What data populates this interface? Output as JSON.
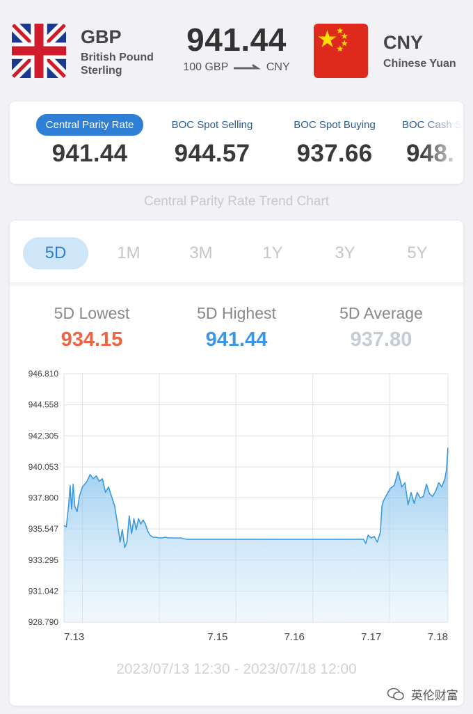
{
  "header": {
    "base_code": "GBP",
    "base_name_line1": "British Pound",
    "base_name_line2": "Sterling",
    "rate": "941.44",
    "conv_from": "100 GBP",
    "conv_to": "CNY",
    "quote_code": "CNY",
    "quote_name": "Chinese Yuan",
    "base_flag_icon": "uk-flag-icon",
    "quote_flag_icon": "china-flag-icon"
  },
  "rate_types": [
    {
      "label": "Central Parity Rate",
      "value": "941.44",
      "active": true
    },
    {
      "label": "BOC Spot Selling",
      "value": "944.57",
      "active": false
    },
    {
      "label": "BOC Spot Buying",
      "value": "937.66",
      "active": false
    },
    {
      "label": "BOC Cash S",
      "value": "948.",
      "active": false
    }
  ],
  "trend_title": "Central Parity Rate Trend Chart",
  "tabs": [
    "5D",
    "1M",
    "3M",
    "1Y",
    "3Y",
    "5Y"
  ],
  "active_tab": "5D",
  "stats": {
    "lowest_label": "5D Lowest",
    "lowest_value": "934.15",
    "highest_label": "5D Highest",
    "highest_value": "941.44",
    "average_label": "5D Average",
    "average_value": "937.80"
  },
  "colors": {
    "accent": "#2f7fd6",
    "lowest": "#ee6443",
    "highest": "#3d95e6",
    "average": "#c4cdd5",
    "line": "#3a9ae0"
  },
  "range_text": "2023/07/13 12:30 - 2023/07/18 12:00",
  "watermark": "英伦财富",
  "chart_data": {
    "type": "area",
    "title": "",
    "xlabel": "",
    "ylabel": "",
    "ylim": [
      928.79,
      946.81
    ],
    "xlim": [
      13.0,
      18.0
    ],
    "y_ticks": [
      "946.810",
      "944.558",
      "942.305",
      "940.053",
      "937.800",
      "935.547",
      "933.295",
      "931.042",
      "928.790"
    ],
    "x_ticks": [
      {
        "x": 13.0,
        "label": "7.13"
      },
      {
        "x": 15.0,
        "label": "7.15"
      },
      {
        "x": 16.0,
        "label": "7.16"
      },
      {
        "x": 17.0,
        "label": "7.17"
      },
      {
        "x": 18.0,
        "label": "7.18"
      }
    ],
    "grid": true,
    "series": [
      {
        "x": [
          13.0,
          13.03,
          13.06,
          13.08,
          13.1,
          13.12,
          13.14,
          13.17,
          13.2,
          13.24,
          13.3,
          13.34,
          13.38,
          13.42,
          13.46,
          13.5,
          13.54,
          13.58,
          13.62,
          13.66,
          13.7,
          13.73,
          13.76,
          13.79,
          13.82,
          13.85,
          13.88,
          13.91,
          13.94,
          13.97,
          14.0,
          14.03,
          14.06,
          14.09,
          14.12,
          14.16,
          14.2,
          14.24,
          14.28,
          14.32,
          14.36,
          14.4,
          14.44,
          14.48,
          14.52,
          14.55,
          14.6,
          14.64,
          14.68,
          14.72,
          14.76,
          14.8,
          14.84,
          14.88,
          14.92,
          14.96,
          15.0,
          15.2,
          15.4,
          15.6,
          15.8,
          16.0,
          16.2,
          16.4,
          16.6,
          16.8,
          16.9,
          16.93,
          16.96,
          17.0,
          17.04,
          17.08,
          17.12,
          17.14,
          17.16,
          17.2,
          17.25,
          17.3,
          17.35,
          17.4,
          17.44,
          17.48,
          17.52,
          17.56,
          17.6,
          17.64,
          17.68,
          17.72,
          17.76,
          17.8,
          17.84,
          17.88,
          17.92,
          17.96,
          17.98,
          18.0
        ],
        "y": [
          935.8,
          935.7,
          937.2,
          938.7,
          937.0,
          938.8,
          937.2,
          936.8,
          937.9,
          938.6,
          939.0,
          939.5,
          939.2,
          939.4,
          939.0,
          939.2,
          938.2,
          938.6,
          937.9,
          937.2,
          935.8,
          934.6,
          935.5,
          934.2,
          934.6,
          936.5,
          935.2,
          936.3,
          935.5,
          936.3,
          935.9,
          936.2,
          935.9,
          935.4,
          935.1,
          934.95,
          934.95,
          934.9,
          934.9,
          934.95,
          934.9,
          934.9,
          934.9,
          934.9,
          934.9,
          934.85,
          934.8,
          934.8,
          934.8,
          934.8,
          934.8,
          934.8,
          934.8,
          934.8,
          934.8,
          934.8,
          934.8,
          934.8,
          934.8,
          934.8,
          934.8,
          934.8,
          934.8,
          934.8,
          934.8,
          934.8,
          934.8,
          934.5,
          935.1,
          934.9,
          935.0,
          934.6,
          935.3,
          937.2,
          937.6,
          938.0,
          938.5,
          938.7,
          939.7,
          938.6,
          938.9,
          937.3,
          938.2,
          937.4,
          938.2,
          937.8,
          937.9,
          938.8,
          938.1,
          937.9,
          938.3,
          938.9,
          938.6,
          939.2,
          939.8,
          941.44
        ]
      }
    ]
  }
}
